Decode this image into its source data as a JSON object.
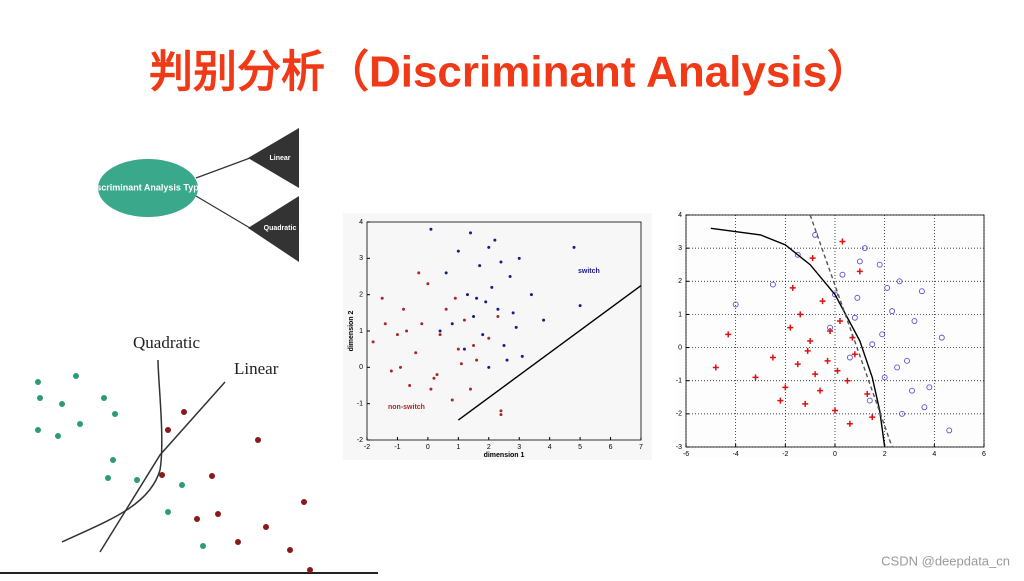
{
  "header": {
    "title": "判别分析（Discriminant Analysis）"
  },
  "diagram": {
    "root": "Discriminant Analysis Types",
    "branches": [
      "Linear",
      "Quadratic"
    ]
  },
  "illustration": {
    "labels": [
      "Quadratic",
      "Linear"
    ]
  },
  "chart_data": [
    {
      "type": "scatter",
      "x_label": "dimension 1",
      "y_label": "dimension 2",
      "xlim": [
        -2,
        7
      ],
      "ylim": [
        -2,
        4
      ],
      "xticks": [
        -2,
        -1,
        0,
        1,
        2,
        3,
        4,
        5,
        6,
        7
      ],
      "yticks": [
        -2,
        -1,
        0,
        1,
        2,
        3,
        4
      ],
      "grid": false,
      "series": [
        {
          "name": "switch",
          "color": "#1a1a8c",
          "marker": "dot",
          "x": [
            0.1,
            0.6,
            1.0,
            1.3,
            1.5,
            1.7,
            1.8,
            2.0,
            2.1,
            2.3,
            2.5,
            2.7,
            2.9,
            3.1,
            3.4,
            3.8,
            1.2,
            1.6,
            2.2,
            2.6,
            0.8,
            1.9,
            2.4,
            3.0,
            4.8,
            5.0,
            1.4,
            2.8,
            0.4,
            2.0
          ],
          "values": [
            3.8,
            2.6,
            3.2,
            2.0,
            1.4,
            2.8,
            0.9,
            3.3,
            2.2,
            1.6,
            0.6,
            2.5,
            1.1,
            0.3,
            2.0,
            1.3,
            0.5,
            1.9,
            3.5,
            0.2,
            1.2,
            1.8,
            2.9,
            3.0,
            3.3,
            1.7,
            3.7,
            1.5,
            1.0,
            0.0
          ]
        },
        {
          "name": "non-switch",
          "color": "#a52a2a",
          "marker": "dot",
          "x": [
            -1.8,
            -1.5,
            -1.2,
            -1.0,
            -0.8,
            -0.6,
            -0.4,
            -0.2,
            0.0,
            0.2,
            0.4,
            0.6,
            0.8,
            1.0,
            1.2,
            1.4,
            1.6,
            2.0,
            2.4,
            -1.4,
            -0.9,
            -0.3,
            0.3,
            0.9,
            1.5,
            -0.7,
            0.1,
            1.1,
            2.3,
            2.4
          ],
          "values": [
            0.7,
            1.9,
            -0.1,
            0.9,
            1.6,
            -0.5,
            0.4,
            1.2,
            2.3,
            -0.3,
            0.9,
            1.6,
            -0.9,
            0.5,
            1.3,
            -0.6,
            0.2,
            0.8,
            -1.3,
            1.2,
            0.0,
            2.6,
            -0.2,
            1.9,
            0.6,
            1.0,
            -0.6,
            0.1,
            1.4,
            -1.2
          ]
        }
      ],
      "lines": [
        {
          "x": [
            1,
            7
          ],
          "values": [
            -1.45,
            2.25
          ],
          "color": "#000000",
          "dash": false
        }
      ]
    },
    {
      "type": "scatter",
      "xlim": [
        -6,
        6
      ],
      "ylim": [
        -3,
        4
      ],
      "xticks": [
        -6,
        -4,
        -2,
        0,
        2,
        4,
        6
      ],
      "yticks": [
        -3,
        -2,
        -1,
        0,
        1,
        2,
        3,
        4
      ],
      "grid": true,
      "series": [
        {
          "color": "#e01010",
          "marker": "plus",
          "x": [
            -4.8,
            -4.3,
            -3.2,
            -2.5,
            -2.0,
            -1.8,
            -1.5,
            -1.2,
            -1.0,
            -0.8,
            -0.5,
            -0.3,
            0.0,
            0.2,
            0.5,
            0.8,
            1.0,
            1.3,
            -1.7,
            -1.1,
            -0.6,
            0.3,
            0.7,
            -2.2,
            -0.9,
            0.1,
            1.5,
            -0.2,
            0.6,
            -1.4
          ],
          "values": [
            -0.6,
            0.4,
            -0.9,
            -0.3,
            -1.2,
            0.6,
            -0.5,
            -1.7,
            0.2,
            -0.8,
            1.4,
            -0.4,
            -1.9,
            0.8,
            -1.0,
            -0.2,
            2.3,
            -1.4,
            1.8,
            -0.1,
            -1.3,
            3.2,
            0.3,
            -1.6,
            2.7,
            -0.7,
            -2.1,
            0.5,
            -2.3,
            1.0
          ]
        },
        {
          "color": "#5a4fd0",
          "marker": "circle",
          "x": [
            -4.0,
            -2.5,
            -1.5,
            -0.8,
            -0.2,
            0.3,
            0.6,
            0.9,
            1.2,
            1.5,
            1.8,
            2.0,
            2.3,
            2.6,
            2.9,
            3.2,
            3.5,
            3.8,
            4.3,
            0.8,
            1.4,
            2.1,
            2.7,
            3.1,
            0.0,
            1.0,
            1.9,
            2.5,
            3.6,
            4.6
          ],
          "values": [
            1.3,
            1.9,
            2.8,
            3.4,
            0.6,
            2.2,
            -0.3,
            1.5,
            3.0,
            0.1,
            2.5,
            -0.9,
            1.1,
            2.0,
            -0.4,
            0.8,
            1.7,
            -1.2,
            0.3,
            0.9,
            -1.6,
            1.8,
            -2.0,
            -1.3,
            1.6,
            2.6,
            0.4,
            -0.6,
            -1.8,
            -2.5
          ]
        }
      ],
      "lines": [
        {
          "x": [
            -5,
            -3,
            -2,
            -1,
            0,
            1,
            1.5,
            1.8,
            2
          ],
          "values": [
            3.6,
            3.4,
            3.1,
            2.5,
            1.6,
            0.2,
            -0.9,
            -1.9,
            -3
          ],
          "color": "#000000",
          "dash": false
        },
        {
          "x": [
            -1,
            2.3
          ],
          "values": [
            4,
            -3
          ],
          "color": "#555555",
          "dash": true
        }
      ]
    }
  ],
  "watermark": "CSDN @deepdata_cn"
}
